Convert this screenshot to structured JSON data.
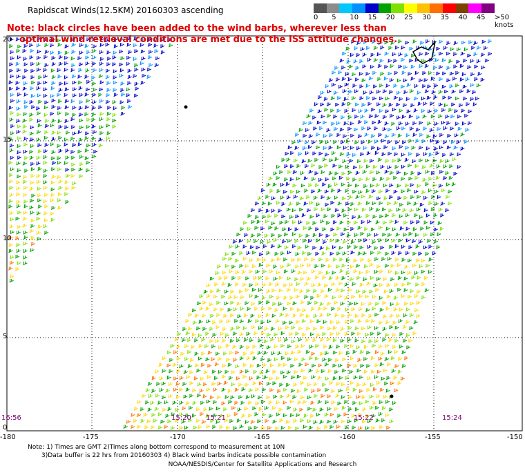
{
  "title": "Rapidscat Winds(12.5KM) 20160303 ascending",
  "note": "Note: black circles have been added to the wind barbs, wherever less than\n    optimal wind retrieval conditions are met due to the ISS attitude changes.",
  "legend": {
    "labels": [
      "0",
      "5",
      "10",
      "15",
      "20",
      "25",
      "30",
      "35",
      "40",
      "45",
      ">50 knots"
    ],
    "colors": [
      "#555555",
      "#8c8c8c",
      "#00c8ff",
      "#0090ff",
      "#0000c8",
      "#00a000",
      "#80e000",
      "#ffff00",
      "#ffc000",
      "#ff7000",
      "#ff0000",
      "#804000",
      "#ff00ff",
      "#800080"
    ]
  },
  "x_axis": {
    "labels": [
      "-180",
      "-175",
      "-170",
      "-165",
      "-160",
      "-155",
      "-150"
    ]
  },
  "y_axis": {
    "labels": [
      "20",
      "15",
      "10",
      "5",
      "0"
    ]
  },
  "time_labels": [
    "16:56",
    "15:20",
    "15:21",
    "15:22",
    "15:24"
  ],
  "footnote": "Note: 1) Times are GMT 2)Times along bottom correspond to measurement at 10N\n       3)Data buffer is 22 hrs from 20160303 4) Black wind barbs indicate possible contamination",
  "credit": "NOAA/NESDIS/Center for Satellite Applications and Research"
}
